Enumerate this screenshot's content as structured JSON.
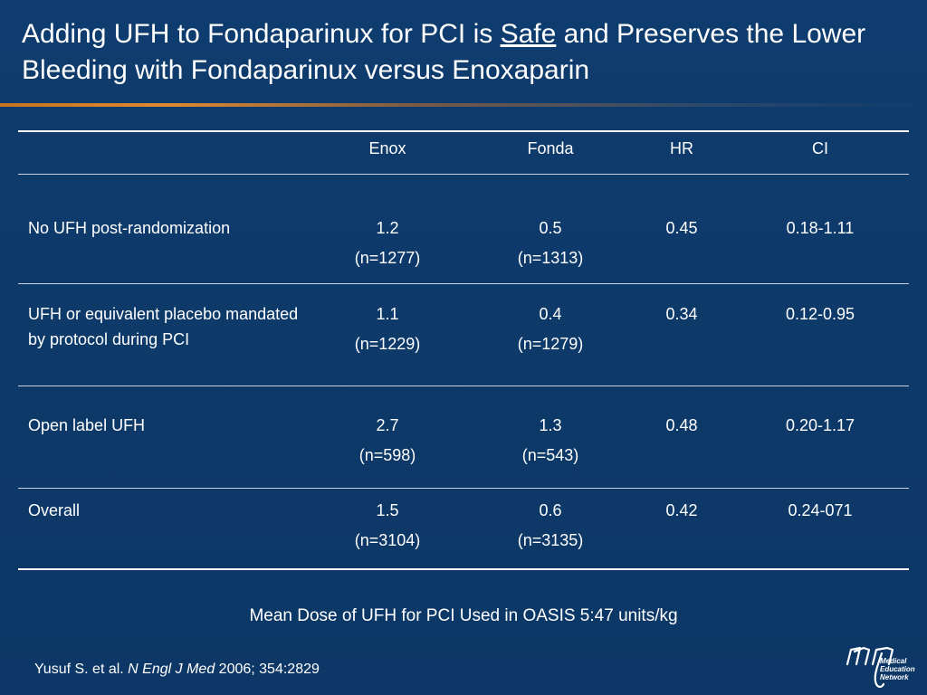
{
  "title": {
    "part1": "Adding UFH to Fondaparinux for PCI is ",
    "underlined": "Safe",
    "part2": " and Preserves the Lower Bleeding with Fondaparinux versus Enoxaparin"
  },
  "table": {
    "headers": [
      "",
      "Enox",
      "Fonda",
      "HR",
      "CI"
    ],
    "rows": [
      {
        "label": "No UFH post-randomization",
        "enox_value": "1.2",
        "enox_n": "(n=1277)",
        "fonda_value": "0.5",
        "fonda_n": "(n=1313)",
        "hr": "0.45",
        "ci": "0.18-1.11"
      },
      {
        "label": "UFH or equivalent placebo mandated by protocol during PCI",
        "enox_value": "1.1",
        "enox_n": "(n=1229)",
        "fonda_value": "0.4",
        "fonda_n": "(n=1279)",
        "hr": "0.34",
        "ci": "0.12-0.95"
      },
      {
        "label": "Open label UFH",
        "enox_value": "2.7",
        "enox_n": "(n=598)",
        "fonda_value": "1.3",
        "fonda_n": "(n=543)",
        "hr": "0.48",
        "ci": "0.20-1.17"
      },
      {
        "label": "Overall",
        "enox_value": "1.5",
        "enox_n": "(n=3104)",
        "fonda_value": "0.6",
        "fonda_n": "(n=3135)",
        "hr": "0.42",
        "ci": "0.24-071"
      }
    ]
  },
  "footnote": "Mean Dose of UFH for PCI Used in OASIS 5:47 units/kg",
  "citation": {
    "authors": "Yusuf S. et al. ",
    "journal": "N Engl J Med",
    "rest": " 2006; 354:2829"
  },
  "logo": {
    "line1": "Medical",
    "line2": "Education",
    "line3": "Network"
  },
  "colors": {
    "background": "#0d3a6b",
    "accent": "#e08a2e",
    "text": "#ffffff"
  }
}
